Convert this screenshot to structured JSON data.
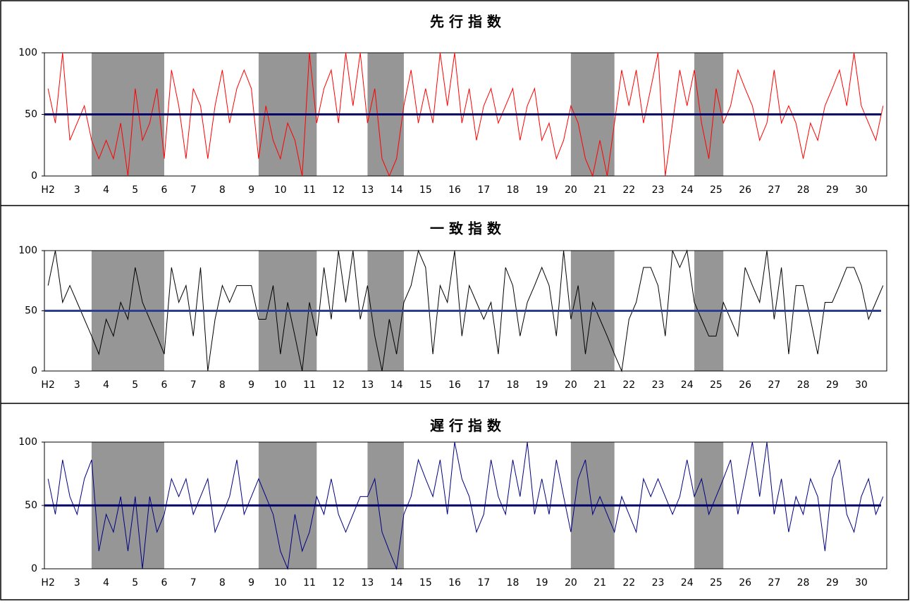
{
  "chart_data": [
    {
      "type": "line",
      "title": "先 行 指 数",
      "color": "#ff0000",
      "reference_line": 50,
      "reference_color": "#000066",
      "shade_color": "#969696",
      "ylim": [
        0,
        100
      ],
      "yticks": [
        0,
        50,
        100
      ],
      "categories": [
        "H2",
        null,
        null,
        null,
        "3",
        null,
        null,
        null,
        "4",
        null,
        null,
        null,
        "5",
        null,
        null,
        null,
        "6",
        null,
        null,
        null,
        "7",
        null,
        null,
        null,
        "8",
        null,
        null,
        null,
        "9",
        null,
        null,
        null,
        "10",
        null,
        null,
        null,
        "11",
        null,
        null,
        null,
        "12",
        null,
        null,
        null,
        "13",
        null,
        null,
        null,
        "14",
        null,
        null,
        null,
        "15",
        null,
        null,
        null,
        "16",
        null,
        null,
        null,
        "17",
        null,
        null,
        null,
        "18",
        null,
        null,
        null,
        "19",
        null,
        null,
        null,
        "20",
        null,
        null,
        null,
        "21",
        null,
        null,
        null,
        "22",
        null,
        null,
        null,
        "23",
        null,
        null,
        null,
        "24",
        null,
        null,
        null,
        "25",
        null,
        null,
        null,
        "26",
        null,
        null,
        null,
        "27",
        null,
        null,
        null,
        "28",
        null,
        null,
        null,
        "29",
        null,
        null,
        null,
        "30",
        null,
        null,
        null
      ],
      "shaded": [
        [
          6,
          16
        ],
        [
          29,
          37
        ],
        [
          44,
          49
        ],
        [
          72,
          78
        ],
        [
          89,
          93
        ]
      ],
      "values": [
        71,
        43,
        100,
        29,
        43,
        57,
        29,
        14,
        29,
        14,
        43,
        0,
        71,
        29,
        43,
        71,
        14,
        86,
        57,
        14,
        71,
        57,
        14,
        57,
        86,
        43,
        71,
        86,
        71,
        14,
        57,
        29,
        14,
        43,
        29,
        0,
        100,
        43,
        71,
        86,
        43,
        100,
        57,
        100,
        43,
        71,
        14,
        0,
        14,
        57,
        86,
        43,
        71,
        43,
        100,
        57,
        100,
        43,
        71,
        29,
        57,
        71,
        43,
        57,
        71,
        29,
        57,
        71,
        29,
        43,
        14,
        29,
        57,
        43,
        14,
        0,
        29,
        0,
        43,
        86,
        57,
        86,
        43,
        71,
        100,
        0,
        43,
        86,
        57,
        86,
        43,
        14,
        71,
        43,
        57,
        86,
        71,
        57,
        29,
        43,
        86,
        43,
        57,
        43,
        14,
        43,
        29,
        57,
        71,
        86,
        57,
        100,
        57,
        43,
        29,
        57
      ]
    },
    {
      "type": "line",
      "title": "一 致 指 数",
      "color": "#000000",
      "reference_line": 50,
      "reference_color": "#2f3f8f",
      "shade_color": "#969696",
      "ylim": [
        0,
        100
      ],
      "yticks": [
        0,
        50,
        100
      ],
      "categories": [
        "H2",
        null,
        null,
        null,
        "3",
        null,
        null,
        null,
        "4",
        null,
        null,
        null,
        "5",
        null,
        null,
        null,
        "6",
        null,
        null,
        null,
        "7",
        null,
        null,
        null,
        "8",
        null,
        null,
        null,
        "9",
        null,
        null,
        null,
        "10",
        null,
        null,
        null,
        "11",
        null,
        null,
        null,
        "12",
        null,
        null,
        null,
        "13",
        null,
        null,
        null,
        "14",
        null,
        null,
        null,
        "15",
        null,
        null,
        null,
        "16",
        null,
        null,
        null,
        "17",
        null,
        null,
        null,
        "18",
        null,
        null,
        null,
        "19",
        null,
        null,
        null,
        "20",
        null,
        null,
        null,
        "21",
        null,
        null,
        null,
        "22",
        null,
        null,
        null,
        "23",
        null,
        null,
        null,
        "24",
        null,
        null,
        null,
        "25",
        null,
        null,
        null,
        "26",
        null,
        null,
        null,
        "27",
        null,
        null,
        null,
        "28",
        null,
        null,
        null,
        "29",
        null,
        null,
        null,
        "30",
        null,
        null,
        null
      ],
      "shaded": [
        [
          6,
          16
        ],
        [
          29,
          37
        ],
        [
          44,
          49
        ],
        [
          72,
          78
        ],
        [
          89,
          93
        ]
      ],
      "values": [
        71,
        100,
        57,
        71,
        57,
        43,
        29,
        14,
        43,
        29,
        57,
        43,
        86,
        57,
        43,
        29,
        14,
        86,
        57,
        71,
        29,
        86,
        0,
        43,
        71,
        57,
        71,
        71,
        71,
        43,
        43,
        71,
        14,
        57,
        29,
        0,
        57,
        29,
        86,
        43,
        100,
        57,
        100,
        43,
        71,
        29,
        0,
        43,
        14,
        57,
        71,
        100,
        86,
        14,
        71,
        57,
        100,
        29,
        71,
        57,
        43,
        57,
        14,
        86,
        71,
        29,
        57,
        71,
        86,
        71,
        29,
        100,
        43,
        71,
        14,
        57,
        43,
        29,
        14,
        0,
        43,
        57,
        86,
        86,
        71,
        29,
        100,
        86,
        100,
        57,
        43,
        29,
        29,
        57,
        43,
        29,
        86,
        71,
        57,
        100,
        43,
        86,
        14,
        71,
        71,
        43,
        14,
        57,
        57,
        71,
        86,
        86,
        71,
        43,
        57,
        71
      ]
    },
    {
      "type": "line",
      "title": "遅 行 指 数",
      "color": "#000080",
      "reference_line": 50,
      "reference_color": "#000066",
      "shade_color": "#969696",
      "ylim": [
        0,
        100
      ],
      "yticks": [
        0,
        50,
        100
      ],
      "categories": [
        "H2",
        null,
        null,
        null,
        "3",
        null,
        null,
        null,
        "4",
        null,
        null,
        null,
        "5",
        null,
        null,
        null,
        "6",
        null,
        null,
        null,
        "7",
        null,
        null,
        null,
        "8",
        null,
        null,
        null,
        "9",
        null,
        null,
        null,
        "10",
        null,
        null,
        null,
        "11",
        null,
        null,
        null,
        "12",
        null,
        null,
        null,
        "13",
        null,
        null,
        null,
        "14",
        null,
        null,
        null,
        "15",
        null,
        null,
        null,
        "16",
        null,
        null,
        null,
        "17",
        null,
        null,
        null,
        "18",
        null,
        null,
        null,
        "19",
        null,
        null,
        null,
        "20",
        null,
        null,
        null,
        "21",
        null,
        null,
        null,
        "22",
        null,
        null,
        null,
        "23",
        null,
        null,
        null,
        "24",
        null,
        null,
        null,
        "25",
        null,
        null,
        null,
        "26",
        null,
        null,
        null,
        "27",
        null,
        null,
        null,
        "28",
        null,
        null,
        null,
        "29",
        null,
        null,
        null,
        "30",
        null,
        null,
        null
      ],
      "shaded": [
        [
          6,
          16
        ],
        [
          29,
          37
        ],
        [
          44,
          49
        ],
        [
          72,
          78
        ],
        [
          89,
          93
        ]
      ],
      "values": [
        71,
        43,
        86,
        57,
        43,
        71,
        86,
        14,
        43,
        29,
        57,
        14,
        57,
        0,
        57,
        29,
        43,
        71,
        57,
        71,
        43,
        57,
        71,
        29,
        43,
        57,
        86,
        43,
        57,
        71,
        57,
        43,
        14,
        0,
        43,
        14,
        29,
        57,
        43,
        71,
        43,
        29,
        43,
        57,
        57,
        71,
        29,
        14,
        0,
        43,
        57,
        86,
        71,
        57,
        86,
        43,
        100,
        71,
        57,
        29,
        43,
        86,
        57,
        43,
        86,
        57,
        100,
        43,
        71,
        43,
        86,
        57,
        29,
        71,
        86,
        43,
        57,
        43,
        29,
        57,
        43,
        29,
        71,
        57,
        71,
        57,
        43,
        57,
        86,
        57,
        71,
        43,
        57,
        71,
        86,
        43,
        71,
        100,
        57,
        100,
        43,
        71,
        29,
        57,
        43,
        71,
        57,
        14,
        71,
        86,
        43,
        29,
        57,
        71,
        43,
        57
      ]
    }
  ]
}
